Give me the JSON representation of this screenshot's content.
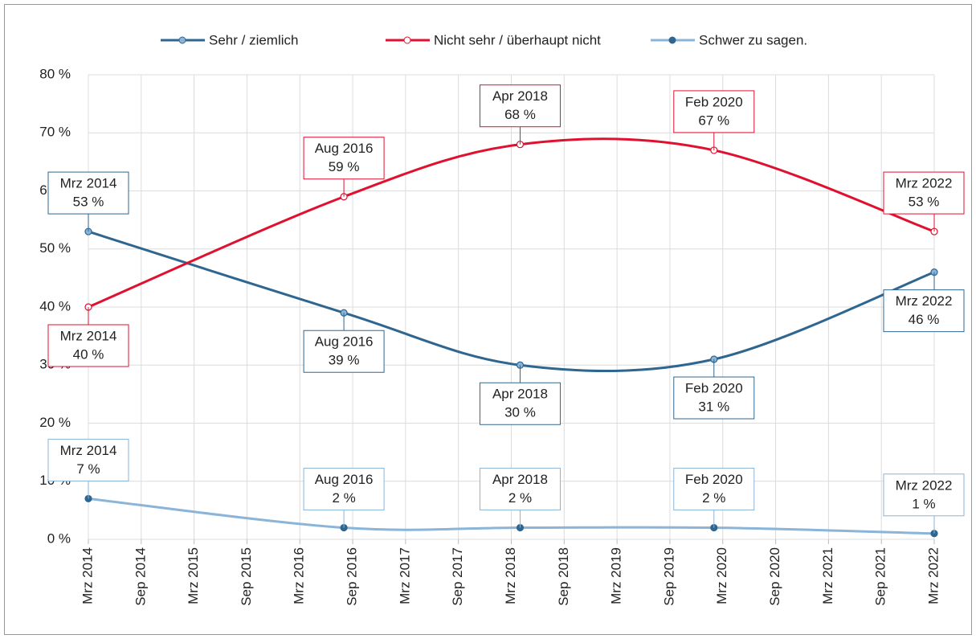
{
  "chart_data": {
    "type": "line",
    "x": [
      "2014-03",
      "2016-08",
      "2018-04",
      "2020-02",
      "2022-03"
    ],
    "x_labels": [
      "Mrz 2014",
      "Aug 2016",
      "Apr 2018",
      "Feb 2020",
      "Mrz 2022"
    ],
    "series": [
      {
        "name": "Sehr / ziemlich",
        "color": "#2e6690",
        "marker_fill": "#8ab4d8",
        "values": [
          53,
          39,
          30,
          31,
          46
        ],
        "value_labels": [
          "53 %",
          "39 %",
          "30 %",
          "31 %",
          "46 %"
        ]
      },
      {
        "name": "Nicht sehr / überhaupt nicht",
        "color": "#e0102f",
        "marker_fill": "#ffffff",
        "values": [
          40,
          59,
          68,
          67,
          53
        ],
        "value_labels": [
          "40 %",
          "59 %",
          "68 %",
          "67 %",
          "53 %"
        ]
      },
      {
        "name": "Schwer zu sagen.",
        "color": "#8ab4d8",
        "marker_fill": "#2e6690",
        "values": [
          7,
          2,
          2,
          2,
          1
        ],
        "value_labels": [
          "7 %",
          "2 %",
          "2 %",
          "2 %",
          "1 %"
        ]
      }
    ],
    "xlim": [
      "2014-03",
      "2022-03"
    ],
    "xticks": [
      {
        "value": "2014-03",
        "label": "Mrz 2014"
      },
      {
        "value": "2014-09",
        "label": "Sep 2014"
      },
      {
        "value": "2015-03",
        "label": "Mrz 2015"
      },
      {
        "value": "2015-09",
        "label": "Sep 2015"
      },
      {
        "value": "2016-03",
        "label": "Mrz 2016"
      },
      {
        "value": "2016-09",
        "label": "Sep 2016"
      },
      {
        "value": "2017-03",
        "label": "Mrz 2017"
      },
      {
        "value": "2017-09",
        "label": "Sep 2017"
      },
      {
        "value": "2018-03",
        "label": "Mrz 2018"
      },
      {
        "value": "2018-09",
        "label": "Sep 2018"
      },
      {
        "value": "2019-03",
        "label": "Mrz 2019"
      },
      {
        "value": "2019-09",
        "label": "Sep 2019"
      },
      {
        "value": "2020-03",
        "label": "Mrz 2020"
      },
      {
        "value": "2020-09",
        "label": "Sep 2020"
      },
      {
        "value": "2021-03",
        "label": "Mrz 2021"
      },
      {
        "value": "2021-09",
        "label": "Sep 2021"
      },
      {
        "value": "2022-03",
        "label": "Mrz 2022"
      }
    ],
    "ylim": [
      0,
      80
    ],
    "yticks": [
      {
        "value": 0,
        "label": "0 %"
      },
      {
        "value": 10,
        "label": "10 %"
      },
      {
        "value": 20,
        "label": "20 %"
      },
      {
        "value": 30,
        "label": "30 %"
      },
      {
        "value": 40,
        "label": "40 %"
      },
      {
        "value": 50,
        "label": "50 %"
      },
      {
        "value": 60,
        "label": "60 %"
      },
      {
        "value": 70,
        "label": "70 %"
      },
      {
        "value": 80,
        "label": "80 %"
      }
    ],
    "grid": true,
    "legend": "top"
  }
}
